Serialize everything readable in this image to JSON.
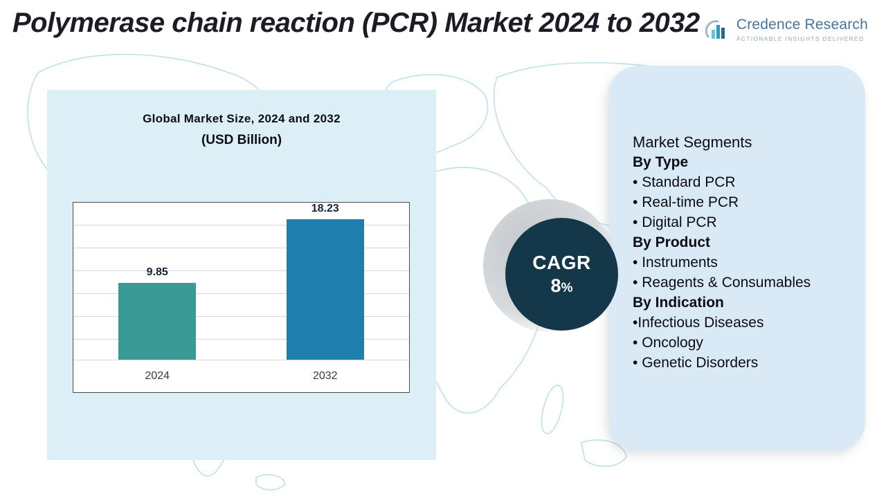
{
  "page": {
    "title": "Polymerase chain reaction (PCR) Market 2024 to 2032"
  },
  "brand": {
    "name": "Credence Research",
    "tagline": "Actionable Insights Delivered",
    "icon": "bar-chart-logo-icon"
  },
  "chart_data": {
    "type": "bar",
    "title": "Global Market Size, 2024 and 2032",
    "subtitle": "(USD Billion)",
    "categories": [
      "2024",
      "2032"
    ],
    "values": [
      9.85,
      18.23
    ],
    "bar_colors": [
      "#3a9b96",
      "#1e7fad"
    ],
    "xlabel": "",
    "ylabel": "",
    "ylim": [
      0,
      20
    ],
    "grid": true,
    "legend": "none"
  },
  "cagr": {
    "label": "CAGR",
    "value": "8",
    "unit": "%"
  },
  "segments": {
    "title": "Market Segments",
    "groups": [
      {
        "heading": "By Type",
        "items": [
          "Standard PCR",
          "Real-time PCR",
          "Digital PCR"
        ]
      },
      {
        "heading": "By Product",
        "items": [
          "Instruments",
          "Reagents & Consumables"
        ]
      },
      {
        "heading": "By Indication",
        "items": [
          "Infectious Diseases",
          "Oncology",
          "Genetic Disorders"
        ]
      }
    ]
  },
  "colors": {
    "cagr_circle": "#14384a",
    "panel_background": "#d9eaf6",
    "map_outline": "#a9d5e8",
    "brand_blue": "#44759e"
  }
}
